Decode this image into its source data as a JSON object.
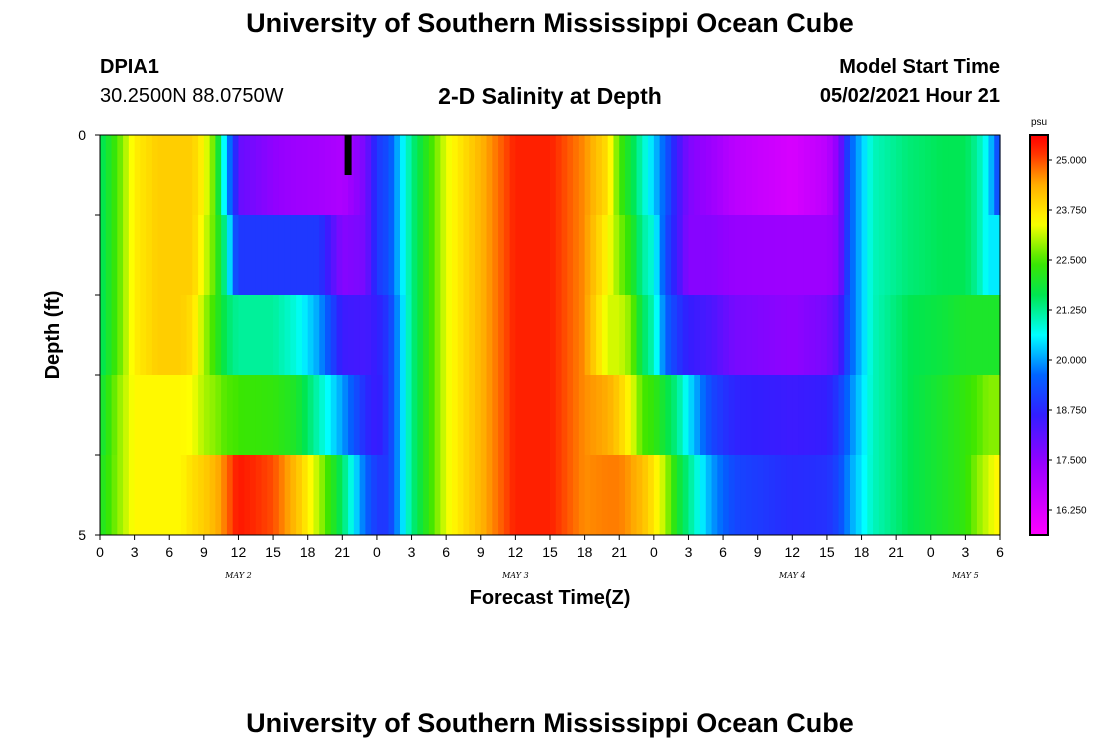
{
  "header": {
    "title": "University of Southern Mississippi Ocean Cube",
    "station": "DPIA1",
    "coordinates": "30.2500N  88.0750W",
    "subtitle": "2-D Salinity at Depth",
    "model_start_label": "Model Start Time",
    "model_start_value": "05/02/2021 Hour 21"
  },
  "footer": {
    "title": "University of Southern Mississippi Ocean Cube"
  },
  "chart_data": {
    "type": "heatmap",
    "title": "2-D Salinity at Depth",
    "xlabel": "Forecast Time(Z)",
    "ylabel": "Depth (ft)",
    "x_tick_labels": [
      "0",
      "3",
      "6",
      "9",
      "12",
      "15",
      "18",
      "21",
      "0",
      "3",
      "6",
      "9",
      "12",
      "15",
      "18",
      "21",
      "0",
      "3",
      "6",
      "9",
      "12",
      "15",
      "18",
      "21",
      "0",
      "3",
      "6"
    ],
    "day_labels": [
      {
        "label": "MAY 2",
        "tick_index": 4
      },
      {
        "label": "MAY 3",
        "tick_index": 12
      },
      {
        "label": "MAY 4",
        "tick_index": 20
      },
      {
        "label": "MAY 5",
        "tick_index": 25
      }
    ],
    "x_range_hours": [
      0,
      78
    ],
    "y_tick_labels": [
      {
        "value": 0,
        "label": "0"
      },
      {
        "value": 1,
        "label": ""
      },
      {
        "value": 2,
        "label": ""
      },
      {
        "value": 3,
        "label": ""
      },
      {
        "value": 4,
        "label": ""
      },
      {
        "value": 5,
        "label": "5"
      }
    ],
    "y_range_ft": [
      0,
      5
    ],
    "colorbar": {
      "unit": "psu",
      "min": 15.625,
      "max": 25.625,
      "tick_values": [
        25.0,
        23.75,
        22.5,
        21.25,
        20.0,
        18.75,
        17.5,
        16.25
      ],
      "tick_labels": [
        "25.000",
        "23.750",
        "22.500",
        "21.250",
        "20.000",
        "18.750",
        "17.500",
        "16.250"
      ]
    },
    "row_depths_ft": [
      0.5,
      1.5,
      2.5,
      3.5,
      4.5
    ],
    "keypoints": [
      {
        "t": 0,
        "values": [
          21.5,
          21.5,
          21.5,
          21.8,
          22.0
        ]
      },
      {
        "t": 1.5,
        "values": [
          22.5,
          22.5,
          22.5,
          22.8,
          22.8
        ]
      },
      {
        "t": 3,
        "values": [
          23.6,
          23.6,
          23.6,
          23.5,
          23.5
        ]
      },
      {
        "t": 5,
        "values": [
          24.0,
          24.0,
          24.0,
          23.5,
          23.5
        ]
      },
      {
        "t": 7,
        "values": [
          24.0,
          24.0,
          24.0,
          23.5,
          23.5
        ]
      },
      {
        "t": 8,
        "values": [
          24.0,
          24.0,
          23.8,
          23.4,
          23.8
        ]
      },
      {
        "t": 9,
        "values": [
          23.5,
          23.3,
          23.0,
          23.0,
          24.0
        ]
      },
      {
        "t": 10,
        "values": [
          22.5,
          22.5,
          22.3,
          22.8,
          24.3
        ]
      },
      {
        "t": 11,
        "values": [
          20.0,
          21.0,
          21.5,
          22.5,
          24.8
        ]
      },
      {
        "t": 11.6,
        "values": [
          19.2,
          19.5,
          21.3,
          22.5,
          25.2
        ]
      },
      {
        "t": 12,
        "values": [
          18.0,
          19.0,
          21.2,
          22.4,
          25.4
        ]
      },
      {
        "t": 15,
        "values": [
          17.5,
          19.0,
          21.2,
          22.3,
          25.0
        ]
      },
      {
        "t": 17,
        "values": [
          17.3,
          19.0,
          20.8,
          22.0,
          24.2
        ]
      },
      {
        "t": 19,
        "values": [
          17.2,
          19.0,
          20.0,
          21.0,
          23.0
        ]
      },
      {
        "t": 21,
        "values": [
          17.0,
          17.6,
          18.5,
          20.0,
          21.5
        ]
      },
      {
        "t": 23,
        "values": [
          17.8,
          17.8,
          18.4,
          18.8,
          19.6
        ]
      },
      {
        "t": 24,
        "values": [
          19.0,
          19.0,
          18.6,
          18.5,
          19.0
        ]
      },
      {
        "t": 25,
        "values": [
          19.3,
          19.3,
          19.0,
          19.0,
          19.0
        ]
      },
      {
        "t": 27,
        "values": [
          21.3,
          21.3,
          21.3,
          21.3,
          21.3
        ]
      },
      {
        "t": 30,
        "values": [
          23.3,
          23.3,
          23.3,
          23.3,
          23.3
        ]
      },
      {
        "t": 33,
        "values": [
          24.3,
          24.3,
          24.3,
          24.3,
          24.3
        ]
      },
      {
        "t": 36,
        "values": [
          25.3,
          25.3,
          25.3,
          25.3,
          25.3
        ]
      },
      {
        "t": 39,
        "values": [
          25.3,
          25.3,
          25.3,
          25.3,
          25.3
        ]
      },
      {
        "t": 42,
        "values": [
          24.6,
          24.6,
          24.6,
          24.6,
          24.6
        ]
      },
      {
        "t": 44,
        "values": [
          23.8,
          23.5,
          23.2,
          24.4,
          24.7
        ]
      },
      {
        "t": 45,
        "values": [
          22.5,
          22.8,
          23.2,
          24.0,
          24.7
        ]
      },
      {
        "t": 46,
        "values": [
          21.8,
          22.2,
          22.8,
          23.4,
          24.5
        ]
      },
      {
        "t": 47,
        "values": [
          21.0,
          21.2,
          21.6,
          22.5,
          24.2
        ]
      },
      {
        "t": 48,
        "values": [
          20.3,
          20.8,
          21.0,
          22.3,
          23.7
        ]
      },
      {
        "t": 49,
        "values": [
          19.5,
          19.3,
          19.6,
          21.8,
          23.0
        ]
      },
      {
        "t": 50,
        "values": [
          18.5,
          18.5,
          19.0,
          21.3,
          22.0
        ]
      },
      {
        "t": 51,
        "values": [
          17.7,
          17.6,
          18.6,
          20.5,
          21.3
        ]
      },
      {
        "t": 53,
        "values": [
          17.3,
          17.6,
          18.3,
          19.2,
          20.0
        ]
      },
      {
        "t": 55,
        "values": [
          16.8,
          17.4,
          17.8,
          18.7,
          19.2
        ]
      },
      {
        "t": 60,
        "values": [
          16.3,
          17.3,
          17.5,
          18.5,
          18.8
        ]
      },
      {
        "t": 63,
        "values": [
          16.8,
          17.3,
          17.8,
          18.6,
          18.9
        ]
      },
      {
        "t": 64,
        "values": [
          17.6,
          17.6,
          18.2,
          19.0,
          19.2
        ]
      },
      {
        "t": 65,
        "values": [
          19.5,
          19.5,
          19.5,
          19.8,
          20.0
        ]
      },
      {
        "t": 67,
        "values": [
          21.0,
          21.0,
          21.0,
          21.0,
          21.0
        ]
      },
      {
        "t": 70,
        "values": [
          21.4,
          21.4,
          21.6,
          21.6,
          21.6
        ]
      },
      {
        "t": 73,
        "values": [
          21.6,
          21.6,
          21.8,
          22.0,
          22.0
        ]
      },
      {
        "t": 75,
        "values": [
          21.6,
          21.6,
          22.0,
          22.3,
          22.3
        ]
      },
      {
        "t": 76,
        "values": [
          21.2,
          21.2,
          22.0,
          22.5,
          22.8
        ]
      },
      {
        "t": 77,
        "values": [
          20.5,
          20.5,
          22.0,
          22.8,
          23.2
        ]
      },
      {
        "t": 78,
        "values": [
          19.0,
          20.5,
          22.0,
          22.8,
          23.6
        ]
      }
    ],
    "marker": {
      "t": 21.5,
      "depth_top": 0,
      "depth_bottom": 0.5,
      "color": "#000000"
    }
  }
}
